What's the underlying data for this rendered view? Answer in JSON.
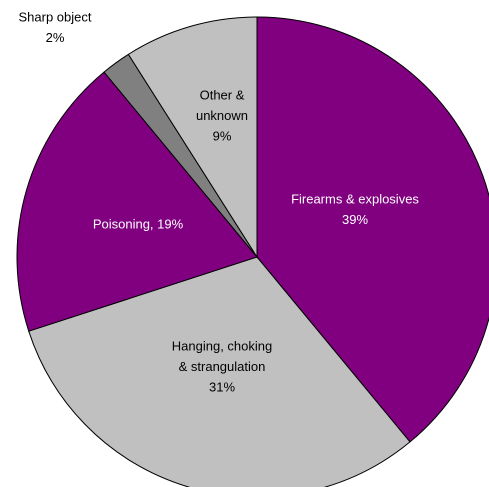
{
  "chart_data": {
    "type": "pie",
    "categories_labels": null,
    "labels": [
      [
        "Firearms & explosives",
        "39%"
      ],
      [
        "Hanging, choking",
        "& strangulation",
        "31%"
      ],
      [
        "Poisoning, 19%"
      ],
      [
        "Sharp object",
        "2%"
      ],
      [
        "Other &",
        "unknown",
        "9%"
      ]
    ],
    "values": [
      39,
      31,
      19,
      2,
      9
    ],
    "colors": [
      "#800080",
      "#c0c0c0",
      "#800080",
      "#808080",
      "#c0c0c0"
    ],
    "label_colors": [
      "#ffffff",
      "#000000",
      "#ffffff",
      "#000000",
      "#000000"
    ]
  }
}
